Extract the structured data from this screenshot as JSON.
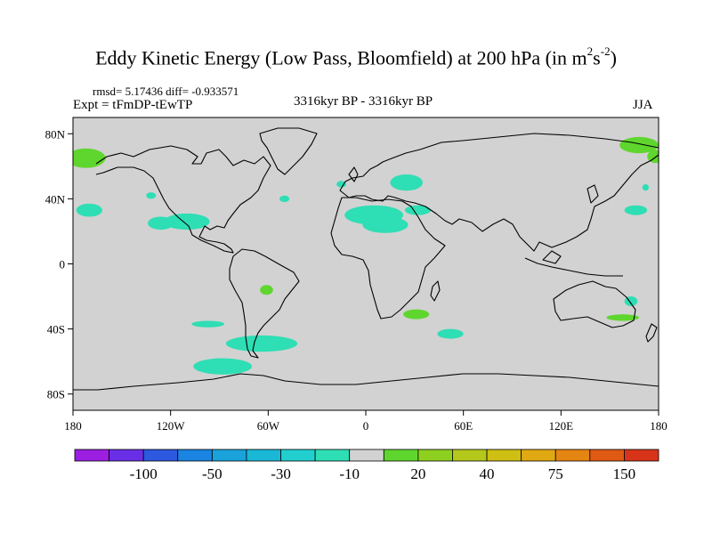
{
  "title": {
    "main": "Eddy Kinetic Energy (Low Pass, Bloomfield) at 200 hPa (in m",
    "sup1": "2",
    "mid": "s",
    "sup2": "-2",
    "end": ")"
  },
  "stats": "rmsd= 5.17436 diff= -0.933571",
  "expt": "Expt = tFmDP-tEwTP",
  "period": "3316kyr BP - 3316kyr BP",
  "season": "JJA",
  "chart_data": {
    "type": "heatmap",
    "title": "Eddy Kinetic Energy (Low Pass, Bloomfield) at 200 hPa (in m2s-2)",
    "projection": "cylindrical equidistant",
    "xlim": [
      -180,
      180
    ],
    "ylim": [
      -90,
      90
    ],
    "x_ticks": [
      {
        "value": -180,
        "label": "180"
      },
      {
        "value": -120,
        "label": "120W"
      },
      {
        "value": -60,
        "label": "60W"
      },
      {
        "value": 0,
        "label": "0"
      },
      {
        "value": 60,
        "label": "60E"
      },
      {
        "value": 120,
        "label": "120E"
      },
      {
        "value": 180,
        "label": "180"
      }
    ],
    "y_ticks": [
      {
        "value": 80,
        "label": "80N"
      },
      {
        "value": 40,
        "label": "40N"
      },
      {
        "value": 0,
        "label": "0"
      },
      {
        "value": -40,
        "label": "40S"
      },
      {
        "value": -80,
        "label": "80S"
      }
    ],
    "colorbar": {
      "colors": [
        "#9b1ee1",
        "#6a2ee6",
        "#2d58e0",
        "#1a84e0",
        "#1aa2da",
        "#1ab8d6",
        "#22cfcf",
        "#2edeb4",
        "#d2d2d2",
        "#5fd62e",
        "#8ed01f",
        "#b3c81a",
        "#cfbf12",
        "#e0a812",
        "#e58512",
        "#e05a14",
        "#d8341a"
      ],
      "labels": [
        {
          "after_box": 2,
          "text": "-100"
        },
        {
          "after_box": 4,
          "text": "-50"
        },
        {
          "after_box": 6,
          "text": "-30"
        },
        {
          "after_box": 8,
          "text": "-10"
        },
        {
          "after_box": 10,
          "text": "20"
        },
        {
          "after_box": 12,
          "text": "40"
        },
        {
          "after_box": 14,
          "text": "75"
        },
        {
          "after_box": 16,
          "text": "150"
        }
      ]
    },
    "anomaly_regions": [
      {
        "category": "-10",
        "color": "#2edeb4",
        "lon": -110,
        "lat": 26,
        "rx": 14,
        "ry": 5
      },
      {
        "category": "-10",
        "color": "#2edeb4",
        "lon": -126,
        "lat": 25,
        "rx": 8,
        "ry": 4
      },
      {
        "category": "-10",
        "color": "#2edeb4",
        "lon": -170,
        "lat": 33,
        "rx": 8,
        "ry": 4
      },
      {
        "category": "-10",
        "color": "#2edeb4",
        "lon": -132,
        "lat": 42,
        "rx": 3,
        "ry": 2
      },
      {
        "category": "-10",
        "color": "#2edeb4",
        "lon": -50,
        "lat": 40,
        "rx": 3,
        "ry": 2
      },
      {
        "category": "-10",
        "color": "#2edeb4",
        "lon": 12,
        "lat": 24,
        "rx": 14,
        "ry": 5
      },
      {
        "category": "-10",
        "color": "#2edeb4",
        "lon": 5,
        "lat": 30,
        "rx": 18,
        "ry": 6
      },
      {
        "category": "-10",
        "color": "#2edeb4",
        "lon": 32,
        "lat": 33,
        "rx": 8,
        "ry": 3
      },
      {
        "category": "-10",
        "color": "#2edeb4",
        "lon": 25,
        "lat": 50,
        "rx": 10,
        "ry": 5
      },
      {
        "category": "-10",
        "color": "#2edeb4",
        "lon": -15,
        "lat": 49,
        "rx": 3,
        "ry": 2
      },
      {
        "category": "-10",
        "color": "#2edeb4",
        "lon": 166,
        "lat": 33,
        "rx": 7,
        "ry": 3
      },
      {
        "category": "-10",
        "color": "#2edeb4",
        "lon": 172,
        "lat": 47,
        "rx": 2,
        "ry": 2
      },
      {
        "category": "-10",
        "color": "#2edeb4",
        "lon": 163,
        "lat": -23,
        "rx": 4,
        "ry": 3
      },
      {
        "category": "-10",
        "color": "#2edeb4",
        "lon": -97,
        "lat": -37,
        "rx": 10,
        "ry": 2
      },
      {
        "category": "-10",
        "color": "#2edeb4",
        "lon": -64,
        "lat": -49,
        "rx": 22,
        "ry": 5
      },
      {
        "category": "-10",
        "color": "#2edeb4",
        "lon": -88,
        "lat": -63,
        "rx": 18,
        "ry": 5
      },
      {
        "category": "-10",
        "color": "#2edeb4",
        "lon": 52,
        "lat": -43,
        "rx": 8,
        "ry": 3
      },
      {
        "category": "20",
        "color": "#5fd62e",
        "lon": -172,
        "lat": 65,
        "rx": 12,
        "ry": 6
      },
      {
        "category": "20",
        "color": "#5fd62e",
        "lon": 168,
        "lat": 73,
        "rx": 12,
        "ry": 5
      },
      {
        "category": "20",
        "color": "#5fd62e",
        "lon": 178,
        "lat": 66,
        "rx": 5,
        "ry": 4
      },
      {
        "category": "20",
        "color": "#5fd62e",
        "lon": -61,
        "lat": -16,
        "rx": 4,
        "ry": 3
      },
      {
        "category": "20",
        "color": "#5fd62e",
        "lon": 31,
        "lat": -31,
        "rx": 8,
        "ry": 3
      },
      {
        "category": "20",
        "color": "#5fd62e",
        "lon": 158,
        "lat": -33,
        "rx": 10,
        "ry": 2
      }
    ]
  }
}
